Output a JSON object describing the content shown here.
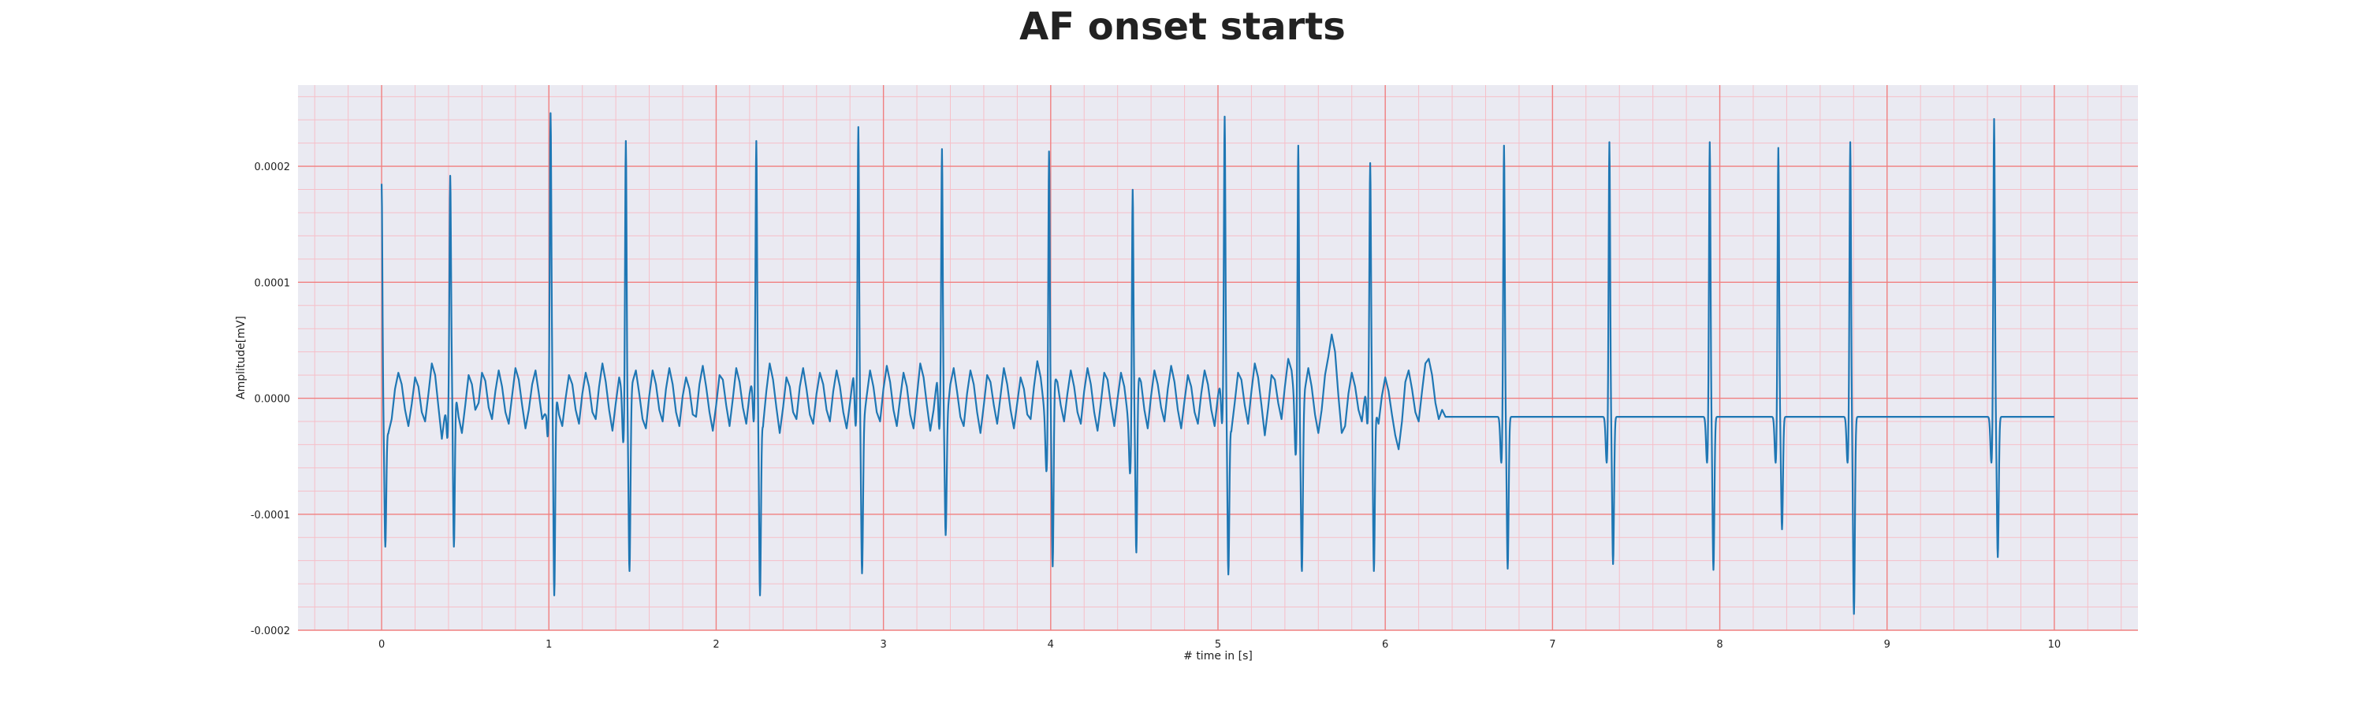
{
  "chart_data": {
    "type": "line",
    "title": "AF onset starts",
    "xlabel": "# time in [s]",
    "ylabel": "Amplitude[mV]",
    "xlim": [
      -0.5,
      10.5
    ],
    "ylim": [
      -0.0002,
      0.00027
    ],
    "x_ticks": [
      0,
      1,
      2,
      3,
      4,
      5,
      6,
      7,
      8,
      9,
      10
    ],
    "y_ticks": [
      -0.0002,
      -0.0001,
      0.0,
      0.0001,
      0.0002
    ],
    "y_tick_labels": [
      "-0.0002",
      "-0.0001",
      "0.0000",
      "0.0001",
      "0.0002"
    ],
    "grid": true,
    "legend": "none",
    "colors": {
      "line": "#1f77b4",
      "major_grid": "#f08080",
      "minor_grid": "#f6bfc8",
      "plot_bg": "#eaeaf2"
    },
    "series": [
      {
        "sample_interval_s": 0.02,
        "beats": [
          {
            "t": 0.0,
            "r": 0.000186,
            "s": -0.000128
          },
          {
            "t": 0.41,
            "r": 0.000193,
            "s": -0.000128
          },
          {
            "t": 1.01,
            "r": 0.000247,
            "s": -0.00017
          },
          {
            "t": 1.46,
            "r": 0.000223,
            "s": -0.000149
          },
          {
            "t": 2.24,
            "r": 0.000223,
            "s": -0.00017
          },
          {
            "t": 2.85,
            "r": 0.000235,
            "s": -0.000151
          },
          {
            "t": 3.35,
            "r": 0.000216,
            "s": -0.000118
          },
          {
            "t": 3.99,
            "r": 0.000214,
            "s": -0.000145
          },
          {
            "t": 4.49,
            "r": 0.000181,
            "s": -0.000133
          },
          {
            "t": 5.04,
            "r": 0.000244,
            "s": -0.000152
          },
          {
            "t": 5.48,
            "r": 0.000219,
            "s": -0.000149
          },
          {
            "t": 5.91,
            "r": 0.000204,
            "s": -0.000149
          },
          {
            "t": 6.71,
            "r": 0.000219,
            "s": -0.000147
          },
          {
            "t": 7.34,
            "r": 0.000222,
            "s": -0.000143
          },
          {
            "t": 7.94,
            "r": 0.000222,
            "s": -0.000148
          },
          {
            "t": 8.35,
            "r": 0.000217,
            "s": -0.000113
          },
          {
            "t": 8.78,
            "r": 0.000222,
            "s": -0.000186
          },
          {
            "t": 9.64,
            "r": 0.000242,
            "s": -0.000137
          }
        ],
        "baseline_samples": [
          5e-06,
          -2.2e-05,
          -3e-05,
          -1.8e-05,
          8e-06,
          2.2e-05,
          1.2e-05,
          -1e-05,
          -2.4e-05,
          -5e-06,
          1.8e-05,
          1e-05,
          -1.2e-05,
          -2e-05,
          4e-06,
          3e-05,
          2e-05,
          -8e-06,
          -3.5e-05,
          -1.2e-05,
          1.4e-05,
          2.6e-05,
          8e-06,
          -1.6e-05,
          -3e-05,
          -6e-06,
          2e-05,
          1.2e-05,
          -1e-05,
          -4e-06,
          2.2e-05,
          1.5e-05,
          -8e-06,
          -1.8e-05,
          6e-06,
          2.4e-05,
          1e-05,
          -1.2e-05,
          -2.2e-05,
          2e-06,
          2.6e-05,
          1.6e-05,
          -6e-06,
          -2.6e-05,
          -1e-05,
          1.2e-05,
          2.4e-05,
          4e-06,
          -1.8e-05,
          -1.2e-05,
          1.6e-05,
          2.8e-05,
          8e-06,
          -1.4e-05,
          -2.4e-05,
          0.0,
          2e-05,
          1.2e-05,
          -1e-05,
          -2.2e-05,
          4e-06,
          2.2e-05,
          1e-05,
          -1.2e-05,
          -1.8e-05,
          1e-05,
          3e-05,
          1.4e-05,
          -1e-05,
          -2.8e-05,
          -4e-06,
          1.8e-05,
          6e-06,
          -1.6e-05,
          -1e-05,
          1.4e-05,
          2.4e-05,
          4e-06,
          -1.8e-05,
          -2.6e-05,
          2e-06,
          2.4e-05,
          1.2e-05,
          -1e-05,
          -2e-05,
          8e-06,
          2.6e-05,
          1.2e-05,
          -1.2e-05,
          -2.4e-05,
          2e-06,
          1.8e-05,
          8e-06,
          -1.4e-05,
          -1.6e-05,
          1.2e-05,
          2.8e-05,
          1e-05,
          -1.2e-05,
          -2.8e-05,
          -6e-06,
          2e-05,
          1.6e-05,
          -6e-06,
          -2.4e-05,
          0.0,
          2.6e-05,
          1.4e-05,
          -8e-06,
          -2.2e-05,
          4e-06,
          2.2e-05,
          1e-05,
          -1.2e-05,
          -2.4e-05,
          6e-06,
          3e-05,
          1.6e-05,
          -8e-06,
          -3e-05,
          -8e-06,
          1.8e-05,
          1e-05,
          -1.2e-05,
          -1.8e-05,
          1e-05,
          2.6e-05,
          8e-06,
          -1.4e-05,
          -2.2e-05,
          4e-06,
          2.2e-05,
          1.2e-05,
          -1e-05,
          -2e-05,
          6e-06,
          2.4e-05,
          1e-05,
          -1.2e-05,
          -2.6e-05,
          -4e-06,
          2e-05,
          1.4e-05,
          -6e-06,
          -2.2e-05,
          2e-06,
          2.4e-05,
          1e-05,
          -1.2e-05,
          -2e-05,
          8e-06,
          2.8e-05,
          1.4e-05,
          -1e-05,
          -2.4e-05,
          0.0,
          2.2e-05,
          1e-05,
          -1.4e-05,
          -2.6e-05,
          2e-06,
          3e-05,
          1.8e-05,
          -6e-06,
          -2.8e-05,
          -1e-05,
          1.6e-05,
          1.2e-05,
          -1e-05,
          -1.6e-05,
          1.2e-05,
          2.6e-05,
          6e-06,
          -1.6e-05,
          -2.4e-05,
          4e-06,
          2.4e-05,
          1.2e-05,
          -1.2e-05,
          -3e-05,
          -6e-06,
          2e-05,
          1.4e-05,
          -6e-06,
          -2.2e-05,
          2e-06,
          2.6e-05,
          1.2e-05,
          -1e-05,
          -2.6e-05,
          -4e-06,
          1.8e-05,
          8e-06,
          -1.4e-05,
          -1.8e-05,
          1e-05,
          3.2e-05,
          1.8e-05,
          -8e-06,
          -3e-05,
          -8e-06,
          2e-05,
          1.4e-05,
          -6e-06,
          -2e-05,
          4e-06,
          2.4e-05,
          1e-05,
          -1.2e-05,
          -2.2e-05,
          6e-06,
          2.6e-05,
          1.2e-05,
          -1.2e-05,
          -2.8e-05,
          -4e-06,
          2.2e-05,
          1.6e-05,
          -6e-06,
          -2.4e-05,
          0.0,
          2.2e-05,
          1e-05,
          -1.4e-05,
          -3e-05,
          -6e-06,
          2.2e-05,
          1.4e-05,
          -1e-05,
          -2.6e-05,
          2e-06,
          2.4e-05,
          1.2e-05,
          -8e-06,
          -2e-05,
          8e-06,
          2.8e-05,
          1.4e-05,
          -1e-05,
          -2.6e-05,
          -2e-06,
          2e-05,
          1e-05,
          -1.2e-05,
          -2.2e-05,
          4e-06,
          2.4e-05,
          1.2e-05,
          -1e-05,
          -2.4e-05,
          2e-06,
          2e-05,
          1e-05,
          -1.4e-05,
          -2.8e-05,
          -4e-06,
          2.2e-05,
          1.6e-05,
          -6e-06,
          -2.2e-05,
          6e-06,
          3e-05,
          1.8e-05,
          -6e-06,
          -3.2e-05,
          -8e-06,
          2e-05,
          1.6e-05,
          -4e-06,
          -1.8e-05,
          1e-05,
          3.4e-05,
          2.4e-05,
          -4e-06,
          -3e-05,
          -3e-05,
          8e-06,
          2.6e-05,
          1e-05,
          -1.4e-05,
          -3e-05,
          -1e-05,
          2e-05,
          3.6e-05,
          5.5e-05,
          4e-05,
          2e-06,
          -3e-05,
          -2.4e-05,
          4e-06,
          2.2e-05,
          1e-05,
          -1e-05,
          -2e-05,
          4e-06,
          2.4e-05,
          1.2e-05,
          -1e-05,
          -2.2e-05,
          2e-06,
          1.8e-05,
          6e-06,
          -1.4e-05,
          -3.2e-05,
          -4.4e-05,
          -2e-05,
          1.4e-05,
          2.4e-05,
          8e-06,
          -1.2e-05,
          -2e-05,
          6e-06,
          3e-05,
          3.4e-05,
          2e-05,
          -4e-06,
          -1.8e-05,
          -1e-05,
          -1.6e-05
        ]
      }
    ]
  }
}
